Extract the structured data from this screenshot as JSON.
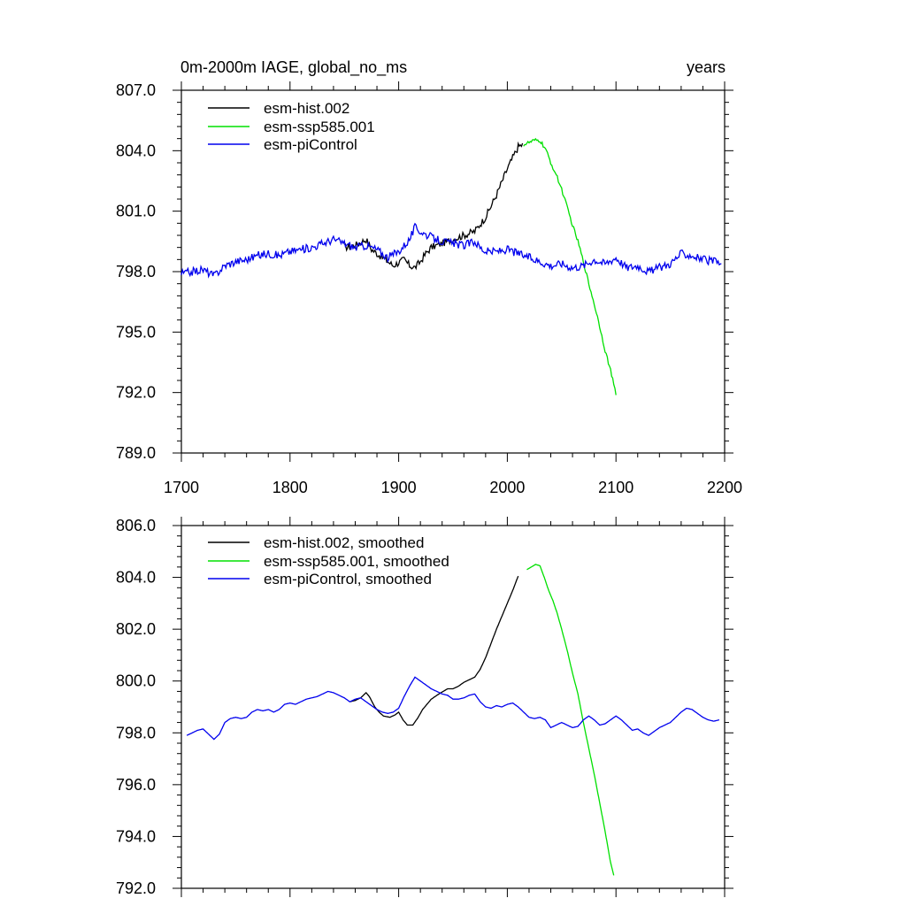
{
  "chart_data": [
    {
      "type": "line",
      "title": "0m-2000m IAGE, global_no_ms",
      "units": "years",
      "xlim": [
        1700,
        2200
      ],
      "ylim": [
        789.0,
        807.0
      ],
      "x_ticks": [
        1700,
        1800,
        1900,
        2000,
        2100,
        2200
      ],
      "x_tick_labels": [
        "1700",
        "1800",
        "1900",
        "2000",
        "2100",
        "2200"
      ],
      "y_ticks": [
        789.0,
        792.0,
        795.0,
        798.0,
        801.0,
        804.0,
        807.0
      ],
      "y_tick_labels": [
        "789.0",
        "792.0",
        "795.0",
        "798.0",
        "801.0",
        "804.0",
        "807.0"
      ],
      "legend_position": "top-left",
      "series": [
        {
          "name": "esm-hist.002",
          "color": "#000000",
          "noise": 0.18,
          "points": [
            [
              1850,
              799.2
            ],
            [
              1860,
              799.3
            ],
            [
              1870,
              799.6
            ],
            [
              1875,
              799.1
            ],
            [
              1880,
              798.9
            ],
            [
              1890,
              798.5
            ],
            [
              1895,
              798.3
            ],
            [
              1905,
              798.6
            ],
            [
              1910,
              798.3
            ],
            [
              1915,
              798.2
            ],
            [
              1920,
              798.5
            ],
            [
              1925,
              798.9
            ],
            [
              1930,
              799.2
            ],
            [
              1940,
              799.4
            ],
            [
              1950,
              799.6
            ],
            [
              1960,
              799.8
            ],
            [
              1970,
              800.0
            ],
            [
              1980,
              800.7
            ],
            [
              1990,
              801.8
            ],
            [
              2000,
              803.1
            ],
            [
              2010,
              804.2
            ],
            [
              2014,
              804.3
            ]
          ]
        },
        {
          "name": "esm-ssp585.001",
          "color": "#00e000",
          "noise": 0.1,
          "points": [
            [
              2015,
              804.3
            ],
            [
              2020,
              804.4
            ],
            [
              2025,
              804.5
            ],
            [
              2030,
              804.5
            ],
            [
              2035,
              804.1
            ],
            [
              2040,
              803.4
            ],
            [
              2045,
              802.8
            ],
            [
              2050,
              802.1
            ],
            [
              2055,
              801.2
            ],
            [
              2060,
              800.3
            ],
            [
              2065,
              799.5
            ],
            [
              2070,
              798.5
            ],
            [
              2075,
              797.4
            ],
            [
              2080,
              796.4
            ],
            [
              2085,
              795.3
            ],
            [
              2090,
              794.1
            ],
            [
              2095,
              793.1
            ],
            [
              2100,
              791.9
            ]
          ]
        },
        {
          "name": "esm-piControl",
          "color": "#0000ee",
          "noise": 0.2,
          "points": [
            [
              1700,
              797.9
            ],
            [
              1710,
              798.0
            ],
            [
              1720,
              798.1
            ],
            [
              1730,
              797.8
            ],
            [
              1740,
              798.3
            ],
            [
              1750,
              798.5
            ],
            [
              1760,
              798.6
            ],
            [
              1770,
              798.8
            ],
            [
              1780,
              798.9
            ],
            [
              1790,
              798.8
            ],
            [
              1800,
              799.0
            ],
            [
              1810,
              799.1
            ],
            [
              1820,
              799.2
            ],
            [
              1830,
              799.4
            ],
            [
              1840,
              799.6
            ],
            [
              1850,
              799.4
            ],
            [
              1860,
              799.2
            ],
            [
              1870,
              799.3
            ],
            [
              1880,
              799.1
            ],
            [
              1890,
              798.7
            ],
            [
              1900,
              799.0
            ],
            [
              1910,
              799.6
            ],
            [
              1915,
              800.2
            ],
            [
              1920,
              800.0
            ],
            [
              1930,
              799.7
            ],
            [
              1940,
              799.5
            ],
            [
              1950,
              799.4
            ],
            [
              1960,
              799.3
            ],
            [
              1970,
              799.5
            ],
            [
              1975,
              799.2
            ],
            [
              1980,
              799.0
            ],
            [
              1990,
              799.0
            ],
            [
              2000,
              799.1
            ],
            [
              2010,
              798.9
            ],
            [
              2020,
              798.7
            ],
            [
              2030,
              798.5
            ],
            [
              2040,
              798.3
            ],
            [
              2050,
              798.4
            ],
            [
              2060,
              798.2
            ],
            [
              2070,
              798.3
            ],
            [
              2080,
              798.6
            ],
            [
              2090,
              798.4
            ],
            [
              2100,
              798.7
            ],
            [
              2110,
              798.2
            ],
            [
              2120,
              798.3
            ],
            [
              2130,
              798.0
            ],
            [
              2140,
              798.2
            ],
            [
              2150,
              798.4
            ],
            [
              2160,
              798.9
            ],
            [
              2170,
              798.8
            ],
            [
              2180,
              798.6
            ],
            [
              2190,
              798.5
            ],
            [
              2197,
              798.4
            ]
          ]
        }
      ]
    },
    {
      "type": "line",
      "xlim": [
        1700,
        2200
      ],
      "ylim": [
        792.0,
        806.0
      ],
      "x_ticks": [
        1700,
        1800,
        1900,
        2000,
        2100,
        2200
      ],
      "y_ticks": [
        792.0,
        794.0,
        796.0,
        798.0,
        800.0,
        802.0,
        804.0,
        806.0
      ],
      "y_tick_labels": [
        "792.0",
        "794.0",
        "796.0",
        "798.0",
        "800.0",
        "802.0",
        "804.0",
        "806.0"
      ],
      "legend_position": "top-left",
      "series": [
        {
          "name": "esm-hist.002, smoothed",
          "color": "#000000",
          "noise": 0,
          "points": [
            [
              1855,
              799.2
            ],
            [
              1860,
              799.25
            ],
            [
              1865,
              799.35
            ],
            [
              1870,
              799.55
            ],
            [
              1873,
              799.4
            ],
            [
              1878,
              799.0
            ],
            [
              1882,
              798.8
            ],
            [
              1886,
              798.65
            ],
            [
              1892,
              798.6
            ],
            [
              1897,
              798.7
            ],
            [
              1900,
              798.8
            ],
            [
              1904,
              798.5
            ],
            [
              1908,
              798.3
            ],
            [
              1913,
              798.3
            ],
            [
              1918,
              798.6
            ],
            [
              1922,
              798.9
            ],
            [
              1930,
              799.3
            ],
            [
              1937,
              799.5
            ],
            [
              1945,
              799.7
            ],
            [
              1950,
              799.7
            ],
            [
              1955,
              799.8
            ],
            [
              1960,
              799.95
            ],
            [
              1965,
              800.05
            ],
            [
              1970,
              800.15
            ],
            [
              1975,
              800.45
            ],
            [
              1980,
              800.9
            ],
            [
              1985,
              801.45
            ],
            [
              1990,
              802.0
            ],
            [
              1995,
              802.5
            ],
            [
              2000,
              803.0
            ],
            [
              2005,
              803.5
            ],
            [
              2010,
              804.05
            ]
          ]
        },
        {
          "name": "esm-ssp585.001, smoothed",
          "color": "#00e000",
          "noise": 0,
          "points": [
            [
              2018,
              804.3
            ],
            [
              2022,
              804.4
            ],
            [
              2026,
              804.5
            ],
            [
              2030,
              804.45
            ],
            [
              2034,
              804.0
            ],
            [
              2038,
              803.5
            ],
            [
              2042,
              803.1
            ],
            [
              2046,
              802.6
            ],
            [
              2050,
              802.0
            ],
            [
              2055,
              801.2
            ],
            [
              2060,
              800.3
            ],
            [
              2065,
              799.5
            ],
            [
              2070,
              798.4
            ],
            [
              2075,
              797.4
            ],
            [
              2080,
              796.4
            ],
            [
              2085,
              795.3
            ],
            [
              2090,
              794.2
            ],
            [
              2095,
              793.0
            ],
            [
              2098,
              792.5
            ]
          ]
        },
        {
          "name": "esm-piControl, smoothed",
          "color": "#0000ee",
          "noise": 0,
          "points": [
            [
              1705,
              797.9
            ],
            [
              1710,
              798.0
            ],
            [
              1715,
              798.1
            ],
            [
              1720,
              798.15
            ],
            [
              1725,
              797.95
            ],
            [
              1730,
              797.75
            ],
            [
              1735,
              797.95
            ],
            [
              1740,
              798.4
            ],
            [
              1745,
              798.55
            ],
            [
              1750,
              798.6
            ],
            [
              1755,
              798.55
            ],
            [
              1760,
              798.6
            ],
            [
              1765,
              798.8
            ],
            [
              1770,
              798.9
            ],
            [
              1775,
              798.85
            ],
            [
              1780,
              798.9
            ],
            [
              1785,
              798.8
            ],
            [
              1790,
              798.9
            ],
            [
              1795,
              799.1
            ],
            [
              1800,
              799.15
            ],
            [
              1805,
              799.1
            ],
            [
              1810,
              799.2
            ],
            [
              1815,
              799.3
            ],
            [
              1820,
              799.35
            ],
            [
              1825,
              799.4
            ],
            [
              1830,
              799.5
            ],
            [
              1835,
              799.6
            ],
            [
              1840,
              799.55
            ],
            [
              1845,
              799.45
            ],
            [
              1850,
              799.35
            ],
            [
              1855,
              799.2
            ],
            [
              1860,
              799.3
            ],
            [
              1865,
              799.35
            ],
            [
              1870,
              799.2
            ],
            [
              1875,
              799.05
            ],
            [
              1880,
              798.9
            ],
            [
              1885,
              798.8
            ],
            [
              1890,
              798.75
            ],
            [
              1895,
              798.8
            ],
            [
              1900,
              798.95
            ],
            [
              1905,
              799.4
            ],
            [
              1910,
              799.8
            ],
            [
              1915,
              800.15
            ],
            [
              1920,
              800.0
            ],
            [
              1925,
              799.85
            ],
            [
              1930,
              799.7
            ],
            [
              1935,
              799.6
            ],
            [
              1940,
              799.5
            ],
            [
              1945,
              799.45
            ],
            [
              1950,
              799.3
            ],
            [
              1955,
              799.3
            ],
            [
              1960,
              799.35
            ],
            [
              1965,
              799.45
            ],
            [
              1970,
              799.5
            ],
            [
              1975,
              799.2
            ],
            [
              1980,
              799.0
            ],
            [
              1985,
              798.95
            ],
            [
              1990,
              799.05
            ],
            [
              1995,
              799.0
            ],
            [
              2000,
              799.1
            ],
            [
              2005,
              799.15
            ],
            [
              2010,
              799.0
            ],
            [
              2015,
              798.8
            ],
            [
              2020,
              798.6
            ],
            [
              2025,
              798.55
            ],
            [
              2030,
              798.6
            ],
            [
              2035,
              798.5
            ],
            [
              2040,
              798.2
            ],
            [
              2045,
              798.3
            ],
            [
              2050,
              798.4
            ],
            [
              2055,
              798.3
            ],
            [
              2060,
              798.2
            ],
            [
              2065,
              798.25
            ],
            [
              2070,
              798.5
            ],
            [
              2075,
              798.65
            ],
            [
              2080,
              798.5
            ],
            [
              2085,
              798.3
            ],
            [
              2090,
              798.35
            ],
            [
              2095,
              798.5
            ],
            [
              2100,
              798.65
            ],
            [
              2105,
              798.5
            ],
            [
              2110,
              798.3
            ],
            [
              2115,
              798.1
            ],
            [
              2120,
              798.15
            ],
            [
              2125,
              798.0
            ],
            [
              2130,
              797.9
            ],
            [
              2135,
              798.05
            ],
            [
              2140,
              798.2
            ],
            [
              2145,
              798.3
            ],
            [
              2150,
              798.4
            ],
            [
              2155,
              798.6
            ],
            [
              2160,
              798.8
            ],
            [
              2165,
              798.95
            ],
            [
              2170,
              798.9
            ],
            [
              2175,
              798.75
            ],
            [
              2180,
              798.6
            ],
            [
              2185,
              798.5
            ],
            [
              2190,
              798.45
            ],
            [
              2195,
              798.5
            ]
          ]
        }
      ]
    }
  ]
}
